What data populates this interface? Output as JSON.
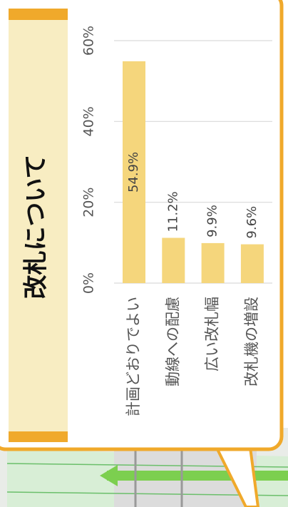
{
  "chart_data": {
    "type": "bar",
    "title": "改札について",
    "categories": [
      "計画どおりでよい",
      "動線への配慮",
      "広い改札幅",
      "改札機の増設"
    ],
    "values": [
      54.9,
      11.2,
      9.9,
      9.6
    ],
    "value_labels": [
      "54.9%",
      "11.2%",
      "9.9%",
      "9.6%"
    ],
    "color": "#f5d67c",
    "ylim": [
      0,
      60
    ],
    "yticks": [
      {
        "value": 0,
        "label": "0%"
      },
      {
        "value": 20,
        "label": "20%"
      },
      {
        "value": 40,
        "label": "40%"
      },
      {
        "value": 60,
        "label": "60%"
      }
    ],
    "grid": true
  }
}
